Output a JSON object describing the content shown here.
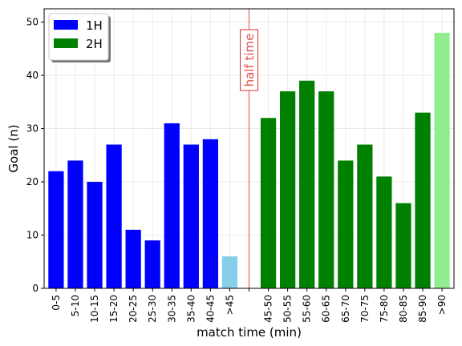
{
  "chart_data": {
    "type": "bar",
    "xlabel": "match time (min)",
    "ylabel": "Goal (n)",
    "ylim": [
      0,
      52.5
    ],
    "yticks": [
      0,
      10,
      20,
      30,
      40,
      50
    ],
    "grid": true,
    "legend_placement": "top-left",
    "categories": [
      "0-5",
      "5-10",
      "10-15",
      "15-20",
      "20-25",
      "25-30",
      "30-35",
      "35-40",
      "40-45",
      ">45",
      "",
      "45-50",
      "50-55",
      "55-60",
      "60-65",
      "65-70",
      "70-75",
      "75-80",
      "80-85",
      "85-90",
      ">90"
    ],
    "series": [
      {
        "name": "1H",
        "color": "#0000ff",
        "values": [
          22,
          24,
          20,
          27,
          11,
          9,
          31,
          27,
          28,
          null,
          null,
          null,
          null,
          null,
          null,
          null,
          null,
          null,
          null,
          null,
          null
        ]
      },
      {
        "name": "2H",
        "color": "#008000",
        "values": [
          null,
          null,
          null,
          null,
          null,
          null,
          null,
          null,
          null,
          null,
          null,
          32,
          37,
          39,
          37,
          24,
          27,
          21,
          16,
          33,
          null
        ]
      }
    ],
    "extra_bars": [
      {
        "category": ">45",
        "value": 6,
        "color": "#87ceeb"
      },
      {
        "category": ">90",
        "value": 48,
        "color": "#90ee90"
      }
    ],
    "annotation": {
      "text": "half time",
      "category_index": 10,
      "line_color": "#f08080",
      "text_color": "#e8504a"
    }
  }
}
